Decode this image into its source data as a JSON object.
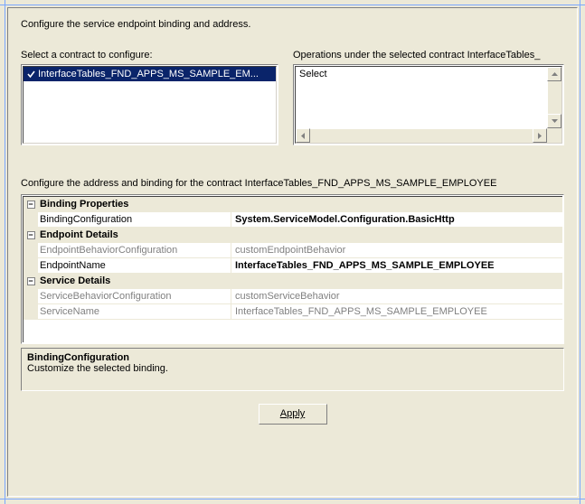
{
  "colors": {
    "panel_bg": "#ece9d8",
    "guide": "#7aa7ff",
    "selection_bg": "#0a246a",
    "selection_fg": "#ffffff",
    "border_dark": "#808080",
    "border_darker": "#404040",
    "border_light": "#ffffff",
    "gray_text": "#808080"
  },
  "header": "Configure the service endpoint binding and address.",
  "left": {
    "label": "Select a contract to configure:",
    "items": [
      {
        "text": "InterfaceTables_FND_APPS_MS_SAMPLE_EM...",
        "checked": true,
        "selected": true
      }
    ]
  },
  "right": {
    "label": "Operations under the selected contract  InterfaceTables_",
    "text": "Select"
  },
  "sublabel": "Configure the address and binding for the contract  InterfaceTables_FND_APPS_MS_SAMPLE_EMPLOYEE",
  "propgrid": {
    "categories": [
      {
        "name": "Binding Properties",
        "rows": [
          {
            "name": "BindingConfiguration",
            "value": "System.ServiceModel.Configuration.BasicHttp",
            "bold": true,
            "gray": false
          }
        ]
      },
      {
        "name": "Endpoint Details",
        "rows": [
          {
            "name": "EndpointBehaviorConfiguration",
            "value": "customEndpointBehavior",
            "bold": false,
            "gray": true
          },
          {
            "name": "EndpointName",
            "value": "InterfaceTables_FND_APPS_MS_SAMPLE_EMPLOYEE",
            "bold": true,
            "gray": false
          }
        ]
      },
      {
        "name": "Service Details",
        "rows": [
          {
            "name": "ServiceBehaviorConfiguration",
            "value": "customServiceBehavior",
            "bold": false,
            "gray": true
          },
          {
            "name": "ServiceName",
            "value": "InterfaceTables_FND_APPS_MS_SAMPLE_EMPLOYEE",
            "bold": false,
            "gray": true
          }
        ]
      }
    ]
  },
  "desc": {
    "title": "BindingConfiguration",
    "text": "Customize the selected binding."
  },
  "apply": "Apply"
}
